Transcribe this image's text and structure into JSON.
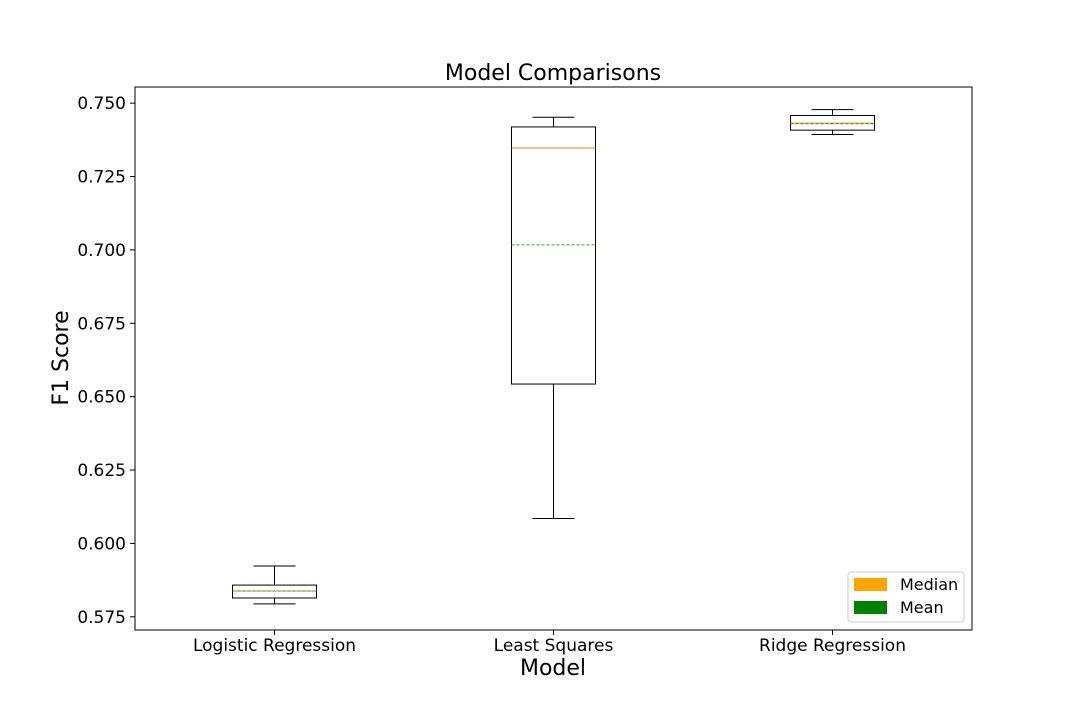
{
  "chart_data": {
    "type": "box",
    "title": "Model Comparisons",
    "xlabel": "Model",
    "ylabel": "F1 Score",
    "categories": [
      "Logistic Regression",
      "Least Squares",
      "Ridge Regression"
    ],
    "ylim": [
      0.5705,
      0.7555
    ],
    "yticks": [
      0.575,
      0.6,
      0.625,
      0.65,
      0.675,
      0.7,
      0.725,
      0.75
    ],
    "ytick_labels": [
      "0.575",
      "0.600",
      "0.625",
      "0.650",
      "0.675",
      "0.700",
      "0.725",
      "0.750"
    ],
    "boxes": [
      {
        "category": "Logistic Regression",
        "whisker_low": 0.5794,
        "q1": 0.5814,
        "median": 0.5838,
        "mean": 0.5838,
        "q3": 0.5858,
        "whisker_high": 0.5923
      },
      {
        "category": "Least Squares",
        "whisker_low": 0.6085,
        "q1": 0.6543,
        "median": 0.7347,
        "mean": 0.7017,
        "q3": 0.7419,
        "whisker_high": 0.7452
      },
      {
        "category": "Ridge Regression",
        "whisker_low": 0.7393,
        "q1": 0.7408,
        "median": 0.7432,
        "mean": 0.743,
        "q3": 0.7458,
        "whisker_high": 0.7478
      }
    ],
    "legend": {
      "placement": "lower-right",
      "items": [
        {
          "label": "Median",
          "color": "#ffa500"
        },
        {
          "label": "Mean",
          "color": "#008000"
        }
      ]
    },
    "colors": {
      "median_line": "#ff7f0e",
      "mean_line": "#2ca02c",
      "box": "#000000"
    },
    "grid": false
  }
}
